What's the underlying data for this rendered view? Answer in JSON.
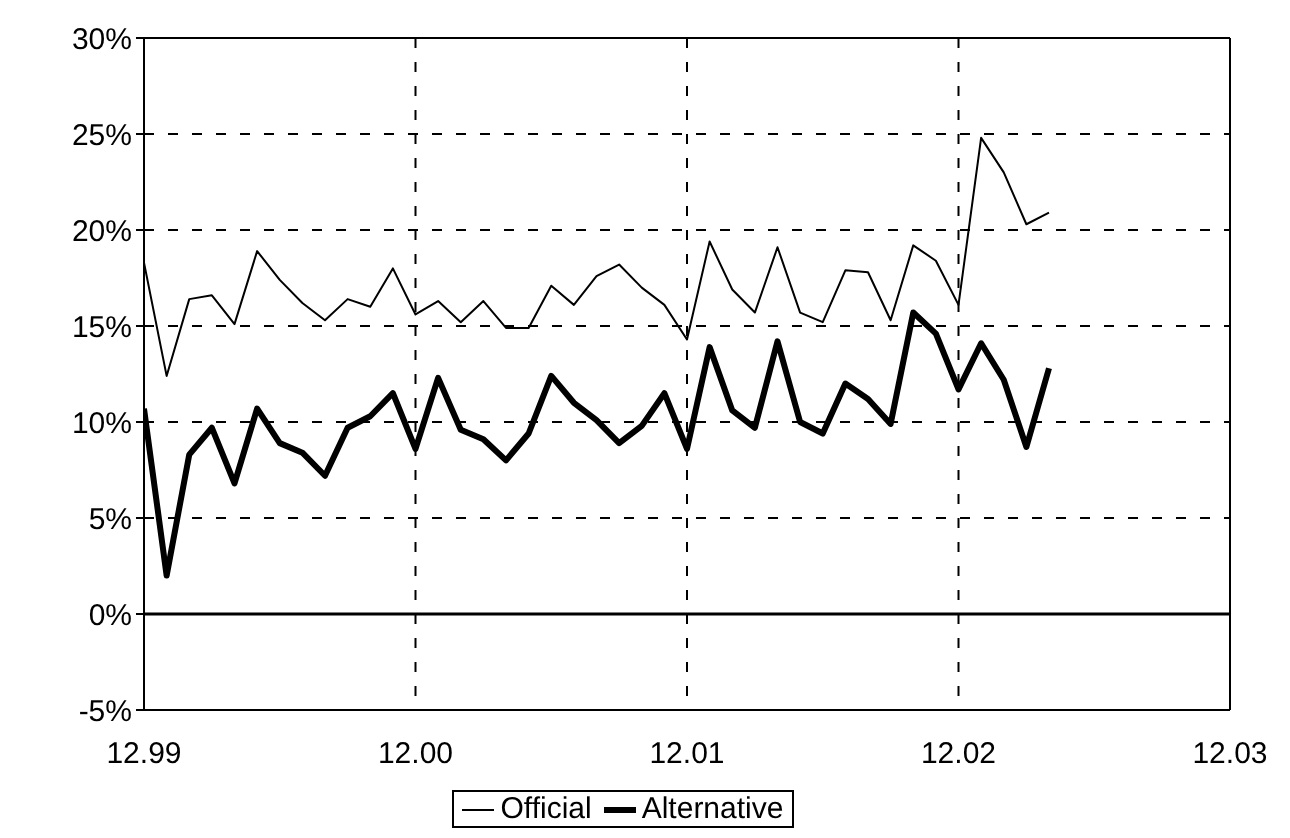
{
  "chart_data": {
    "type": "line",
    "x": [
      "1999-12",
      "2000-01",
      "2000-02",
      "2000-03",
      "2000-04",
      "2000-05",
      "2000-06",
      "2000-07",
      "2000-08",
      "2000-09",
      "2000-10",
      "2000-11",
      "2000-12",
      "2001-01",
      "2001-02",
      "2001-03",
      "2001-04",
      "2001-05",
      "2001-06",
      "2001-07",
      "2001-08",
      "2001-09",
      "2001-10",
      "2001-11",
      "2001-12",
      "2002-01",
      "2002-02",
      "2002-03",
      "2002-04",
      "2002-05",
      "2002-06",
      "2002-07",
      "2002-08",
      "2002-09",
      "2002-10",
      "2002-11",
      "2002-12",
      "2003-01",
      "2003-02",
      "2003-03",
      "2003-04"
    ],
    "series": [
      {
        "name": "Official",
        "color": "#000000",
        "values": [
          18.3,
          12.4,
          16.4,
          16.6,
          15.1,
          18.9,
          17.4,
          16.2,
          15.3,
          16.4,
          16.0,
          18.0,
          15.6,
          16.3,
          15.2,
          16.3,
          14.9,
          14.9,
          17.1,
          16.1,
          17.6,
          18.2,
          17.0,
          16.1,
          14.3,
          19.4,
          16.9,
          15.7,
          19.1,
          15.7,
          15.2,
          17.9,
          17.8,
          15.3,
          19.2,
          18.4,
          16.1,
          24.8,
          23.0,
          20.3,
          20.9
        ]
      },
      {
        "name": "Alternative",
        "color": "#000000",
        "values": [
          10.7,
          2.0,
          8.3,
          9.7,
          6.8,
          10.7,
          8.9,
          8.4,
          7.2,
          9.7,
          10.3,
          11.5,
          8.6,
          12.3,
          9.6,
          9.1,
          8.0,
          9.4,
          12.4,
          11.0,
          10.1,
          8.9,
          9.8,
          11.5,
          8.6,
          13.9,
          10.6,
          9.7,
          14.2,
          10.0,
          9.4,
          12.0,
          11.2,
          9.9,
          15.7,
          14.6,
          11.7,
          14.1,
          12.2,
          8.7,
          12.8
        ]
      }
    ],
    "xlim": [
      "1999-12",
      "2003-12"
    ],
    "xticks": [
      {
        "value": "1999-12",
        "label": "12.99"
      },
      {
        "value": "2000-12",
        "label": "12.00"
      },
      {
        "value": "2001-12",
        "label": "12.01"
      },
      {
        "value": "2002-12",
        "label": "12.02"
      },
      {
        "value": "2003-12",
        "label": "12.03"
      }
    ],
    "ylim": [
      -5,
      30
    ],
    "yticks": [
      {
        "value": -5,
        "label": "-5%"
      },
      {
        "value": 0,
        "label": "0%"
      },
      {
        "value": 5,
        "label": "5%"
      },
      {
        "value": 10,
        "label": "10%"
      },
      {
        "value": 15,
        "label": "15%"
      },
      {
        "value": 20,
        "label": "20%"
      },
      {
        "value": 25,
        "label": "25%"
      },
      {
        "value": 30,
        "label": "30%"
      }
    ],
    "ref_lines": [
      {
        "axis": "y",
        "value": 0,
        "color": "#000000"
      }
    ],
    "grid": true,
    "legend": "bottom",
    "marker": "none",
    "line_style": "solid"
  }
}
